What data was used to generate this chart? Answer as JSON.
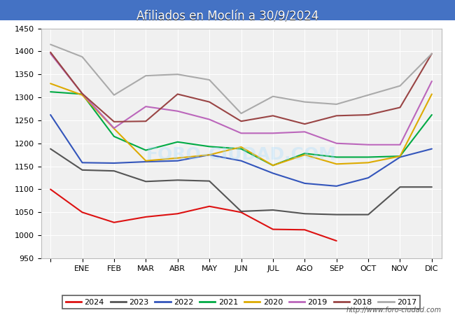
{
  "title": "Afiliados en Moclín a 30/9/2024",
  "xlabels": [
    "",
    "ENE",
    "FEB",
    "MAR",
    "ABR",
    "MAY",
    "JUN",
    "JUL",
    "AGO",
    "SEP",
    "OCT",
    "NOV",
    "DIC"
  ],
  "ylim": [
    950,
    1450
  ],
  "yticks": [
    950,
    1000,
    1050,
    1100,
    1150,
    1200,
    1250,
    1300,
    1350,
    1400,
    1450
  ],
  "plot_bg_color": "#f0f0f0",
  "series": [
    {
      "label": "2024",
      "color": "#dd1111",
      "data": [
        1100,
        1050,
        1028,
        1040,
        1047,
        1063,
        1050,
        1013,
        1012,
        988,
        null,
        null,
        null
      ]
    },
    {
      "label": "2023",
      "color": "#555555",
      "data": [
        1188,
        1142,
        1140,
        1117,
        1120,
        1118,
        1052,
        1055,
        1047,
        1045,
        1045,
        1105,
        1105
      ]
    },
    {
      "label": "2022",
      "color": "#3355bb",
      "data": [
        1262,
        1158,
        1157,
        1160,
        1162,
        1175,
        1162,
        1135,
        1113,
        1107,
        1125,
        1170,
        1188
      ]
    },
    {
      "label": "2021",
      "color": "#00aa44",
      "data": [
        1312,
        1307,
        1215,
        1185,
        1203,
        1193,
        1188,
        1152,
        1178,
        1170,
        1170,
        1172,
        1262
      ]
    },
    {
      "label": "2020",
      "color": "#ddaa00",
      "data": [
        1330,
        1305,
        1232,
        1162,
        1168,
        1175,
        1192,
        1152,
        1175,
        1155,
        1158,
        1172,
        1307
      ]
    },
    {
      "label": "2019",
      "color": "#bb66bb",
      "data": [
        1395,
        1308,
        1233,
        1280,
        1270,
        1252,
        1222,
        1222,
        1225,
        1200,
        1197,
        1197,
        1335
      ]
    },
    {
      "label": "2018",
      "color": "#994444",
      "data": [
        1398,
        1308,
        1247,
        1248,
        1307,
        1290,
        1248,
        1260,
        1242,
        1260,
        1262,
        1278,
        1395
      ]
    },
    {
      "label": "2017",
      "color": "#aaaaaa",
      "data": [
        1415,
        1388,
        1305,
        1347,
        1350,
        1338,
        1265,
        1302,
        1290,
        1285,
        null,
        1325,
        1395
      ]
    }
  ],
  "footer_text": "http://www.foro-ciudad.com"
}
